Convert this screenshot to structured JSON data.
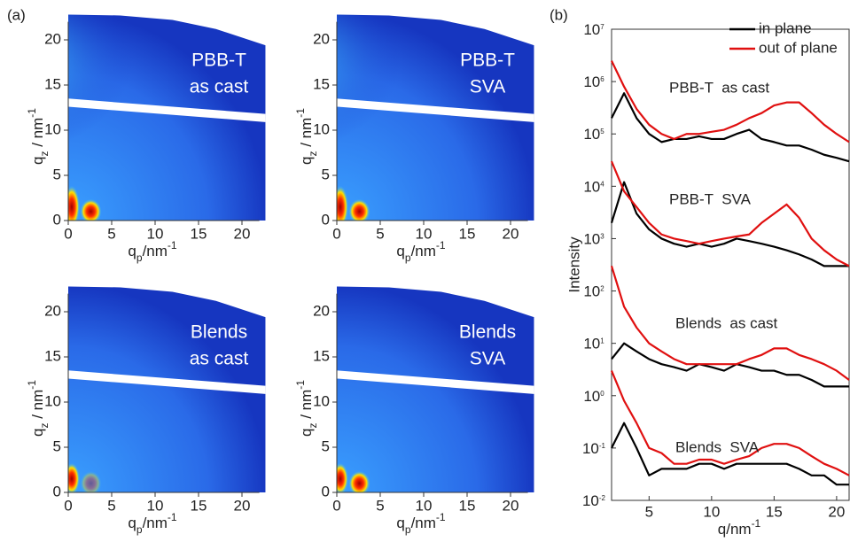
{
  "chart_data": [
    {
      "type": "image",
      "label": "(a)",
      "annotation": [
        "PBB-T",
        "as cast"
      ],
      "xlabel": {
        "base": "q",
        "sub": "p",
        "unit": "/nm",
        "sup": "-1"
      },
      "ylabel": {
        "base": "q",
        "sub": "z",
        "unit": " / nm",
        "sup": "-1"
      },
      "xlim": [
        0,
        22
      ],
      "ylim": [
        0,
        22
      ],
      "xticks": [
        0,
        5,
        10,
        15,
        20
      ],
      "yticks": [
        0,
        5,
        10,
        15,
        20
      ]
    },
    {
      "type": "image",
      "annotation": [
        "PBB-T",
        "SVA"
      ],
      "xlabel": {
        "base": "q",
        "sub": "p",
        "unit": "/nm",
        "sup": "-1"
      },
      "ylabel": {
        "base": "q",
        "sub": "z",
        "unit": " / nm",
        "sup": "-1"
      },
      "xlim": [
        0,
        22
      ],
      "ylim": [
        0,
        22
      ],
      "xticks": [
        0,
        5,
        10,
        15,
        20
      ],
      "yticks": [
        0,
        5,
        10,
        15,
        20
      ]
    },
    {
      "type": "image",
      "annotation": [
        "Blends",
        "as cast"
      ],
      "xlabel": {
        "base": "q",
        "sub": "p",
        "unit": "/nm",
        "sup": "-1"
      },
      "ylabel": {
        "base": "q",
        "sub": "z",
        "unit": " / nm",
        "sup": "-1"
      },
      "xlim": [
        0,
        22
      ],
      "ylim": [
        0,
        22
      ],
      "xticks": [
        0,
        5,
        10,
        15,
        20
      ],
      "yticks": [
        0,
        5,
        10,
        15,
        20
      ]
    },
    {
      "type": "image",
      "annotation": [
        "Blends",
        "SVA"
      ],
      "xlabel": {
        "base": "q",
        "sub": "p",
        "unit": "/nm",
        "sup": "-1"
      },
      "ylabel": {
        "base": "q",
        "sub": "z",
        "unit": " / nm",
        "sup": "-1"
      },
      "xlim": [
        0,
        22
      ],
      "ylim": [
        0,
        22
      ],
      "xticks": [
        0,
        5,
        10,
        15,
        20
      ],
      "yticks": [
        0,
        5,
        10,
        15,
        20
      ]
    },
    {
      "type": "line",
      "label": "(b)",
      "log_y": true,
      "xlabel": {
        "base": "q/nm",
        "sup": "-1"
      },
      "ylabel": "Intensity",
      "xlim": [
        2,
        21
      ],
      "xticks": [
        5,
        10,
        15,
        20
      ],
      "ylim": [
        0.01,
        10000000
      ],
      "yticks": [
        {
          "value": 0.01,
          "base": "10",
          "exp": "-2"
        },
        {
          "value": 0.1,
          "base": "10",
          "exp": "-1"
        },
        {
          "value": 1,
          "base": "10",
          "exp": "0"
        },
        {
          "value": 10,
          "base": "10",
          "exp": "1"
        },
        {
          "value": 100,
          "base": "10",
          "exp": "2"
        },
        {
          "value": 1000,
          "base": "10",
          "exp": "3"
        },
        {
          "value": 10000,
          "base": "10",
          "exp": "4"
        },
        {
          "value": 100000,
          "base": "10",
          "exp": "5"
        },
        {
          "value": 1000000,
          "base": "10",
          "exp": "6"
        },
        {
          "value": 10000000,
          "base": "10",
          "exp": "7"
        }
      ],
      "annotations": [
        "PBB-T  as cast",
        "PBB-T  SVA",
        "Blends  as cast",
        "Blends  SVA"
      ],
      "x": [
        2,
        3,
        4,
        5,
        6,
        7,
        8,
        9,
        10,
        11,
        12,
        13,
        14,
        15,
        16,
        17,
        18,
        19,
        20,
        21
      ],
      "series": [
        {
          "name": "in plane",
          "color": "#000000",
          "curves": [
            [
              200000,
              600000,
              200000,
              100000,
              70000,
              80000,
              80000,
              90000,
              80000,
              80000,
              100000,
              120000,
              80000,
              70000,
              60000,
              60000,
              50000,
              40000,
              35000,
              30000
            ],
            [
              2000,
              12000,
              3000,
              1500,
              1000,
              800,
              700,
              800,
              700,
              800,
              1000,
              900,
              800,
              700,
              600,
              500,
              400,
              300,
              300,
              300
            ],
            [
              5,
              10,
              7,
              5,
              4,
              3.5,
              3,
              4,
              3.5,
              3,
              4,
              3.5,
              3,
              3,
              2.5,
              2.5,
              2,
              1.5,
              1.5,
              1.5
            ],
            [
              0.1,
              0.3,
              0.1,
              0.03,
              0.04,
              0.04,
              0.04,
              0.05,
              0.05,
              0.04,
              0.05,
              0.05,
              0.05,
              0.05,
              0.05,
              0.04,
              0.03,
              0.03,
              0.02,
              0.02
            ]
          ]
        },
        {
          "name": "out of plane",
          "color": "#e01010",
          "curves": [
            [
              2500000,
              800000,
              300000,
              150000,
              100000,
              80000,
              100000,
              100000,
              110000,
              120000,
              150000,
              200000,
              250000,
              350000,
              400000,
              400000,
              250000,
              150000,
              100000,
              70000
            ],
            [
              30000,
              8000,
              4000,
              2000,
              1200,
              1000,
              900,
              800,
              900,
              1000,
              1100,
              1200,
              2000,
              3000,
              4500,
              2500,
              1000,
              600,
              400,
              300
            ],
            [
              300,
              50,
              20,
              10,
              7,
              5,
              4,
              4,
              4,
              4,
              4,
              5,
              6,
              8,
              8,
              6,
              5,
              4,
              3,
              2
            ],
            [
              3,
              0.8,
              0.3,
              0.1,
              0.08,
              0.05,
              0.05,
              0.06,
              0.06,
              0.05,
              0.06,
              0.07,
              0.1,
              0.12,
              0.12,
              0.1,
              0.07,
              0.05,
              0.04,
              0.03
            ]
          ]
        }
      ]
    }
  ]
}
